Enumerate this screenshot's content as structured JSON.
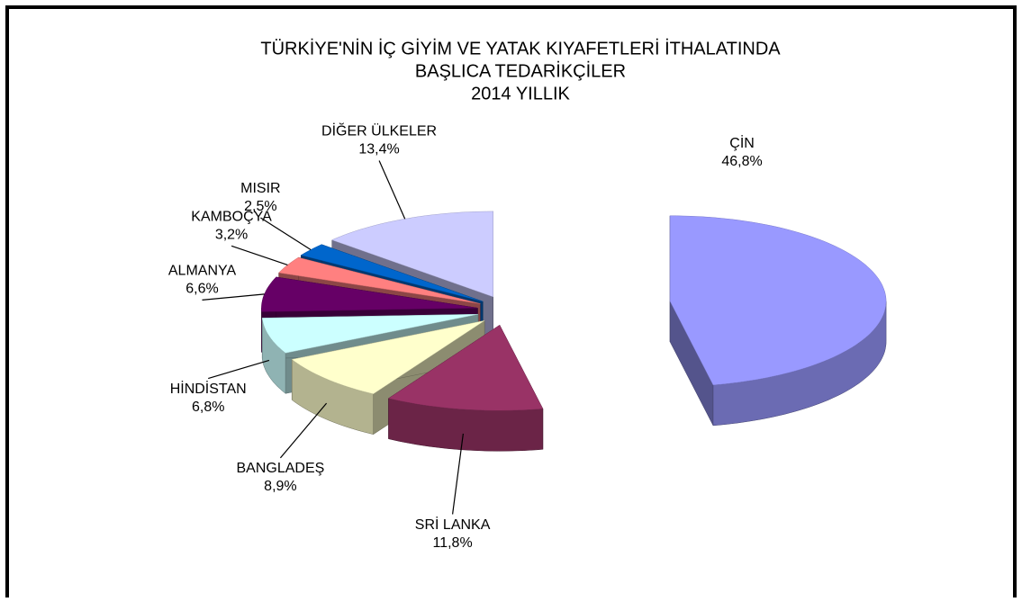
{
  "chart_data": {
    "type": "pie",
    "title": [
      "TÜRKİYE'NİN İÇ GİYİM VE YATAK KIYAFETLERİ İTHALATINDA",
      "BAŞLICA TEDARİKÇİLER",
      "2014 YILLIK"
    ],
    "categories": [
      "ÇİN",
      "SRİ LANKA",
      "BANGLADEŞ",
      "HİNDİSTAN",
      "ALMANYA",
      "KAMBOÇYA",
      "MISIR",
      "DİĞER ÜLKELER"
    ],
    "values": [
      46.8,
      11.8,
      8.9,
      6.8,
      6.6,
      3.2,
      2.5,
      13.4
    ],
    "value_labels": [
      "46,8%",
      "11,8%",
      "8,9%",
      "6,8%",
      "6,6%",
      "3,2%",
      "2,5%",
      "13,4%"
    ],
    "colors": [
      "#9999ff",
      "#993366",
      "#ffffcc",
      "#ccffff",
      "#660066",
      "#ff8080",
      "#0066cc",
      "#ccccff"
    ]
  }
}
